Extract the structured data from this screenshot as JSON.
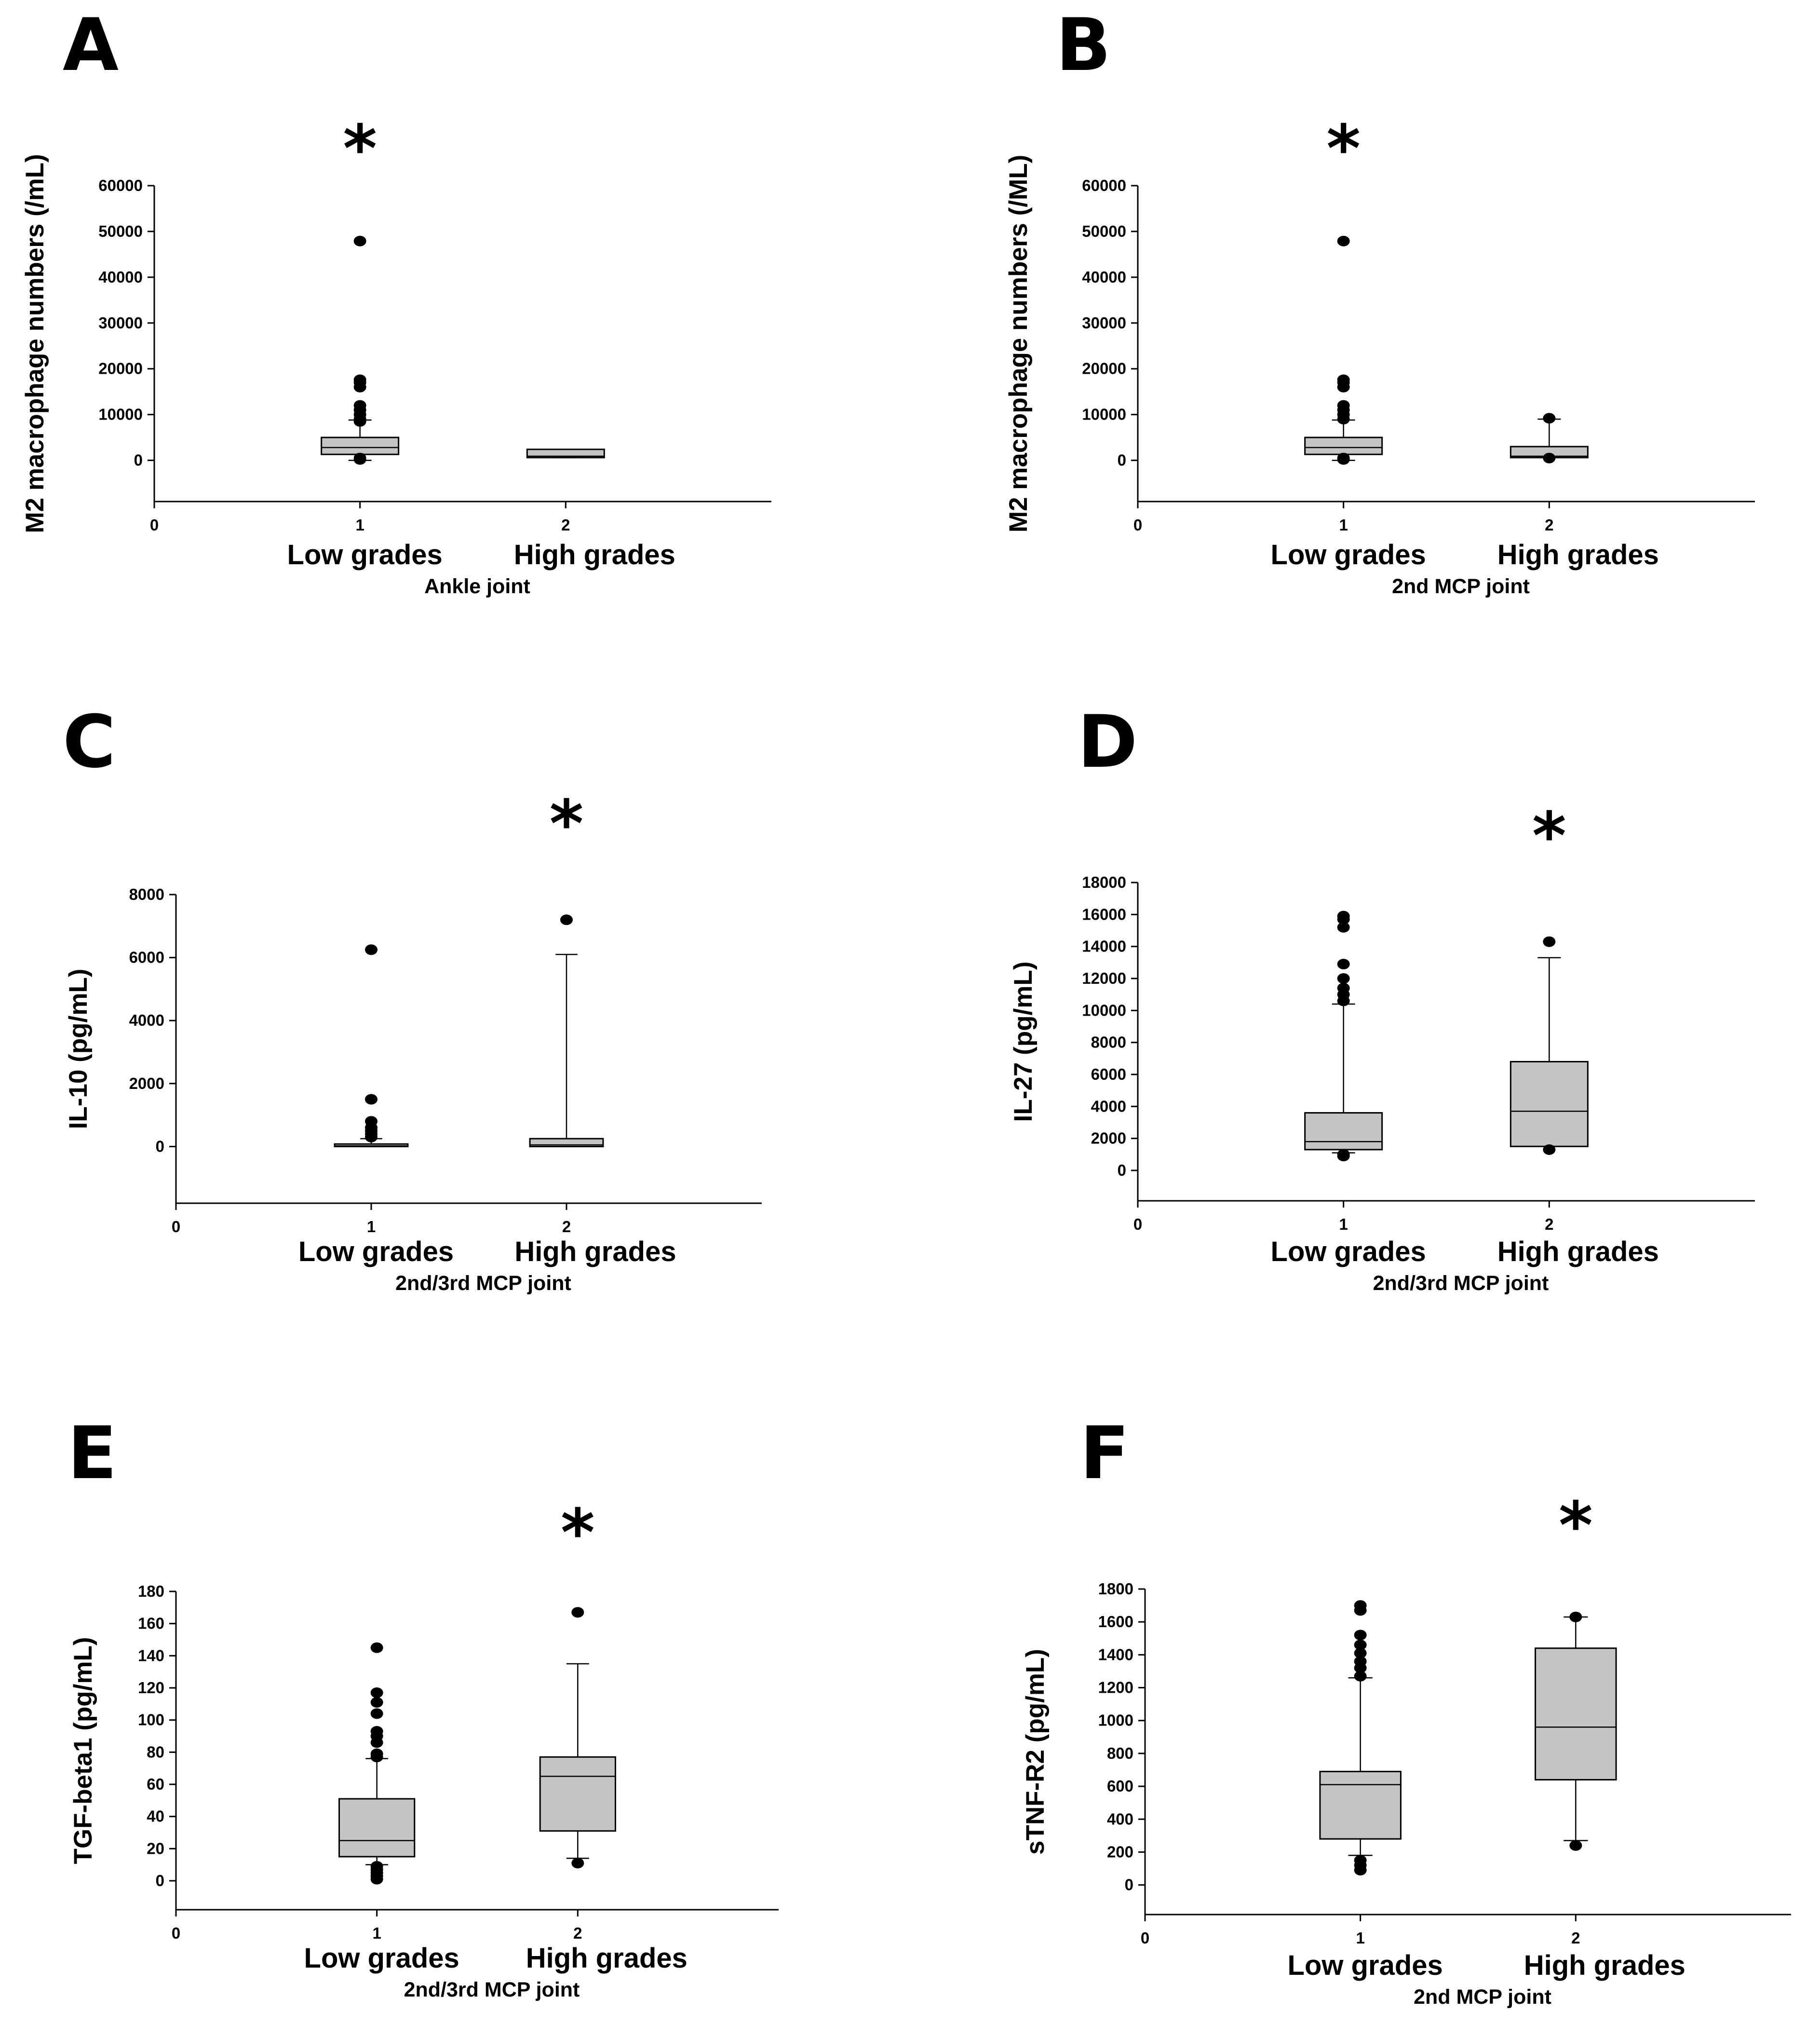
{
  "chart_data": [
    {
      "type": "box",
      "panel": "A",
      "significance": "*",
      "significance_over": 1,
      "ylabel": "M2 macrophage numbers (/mL)",
      "yticks": [
        0,
        10000,
        20000,
        30000,
        40000,
        50000,
        60000
      ],
      "ylim": [
        -9000,
        60000
      ],
      "xlim": [
        0,
        3
      ],
      "xticks": [
        0,
        1,
        2
      ],
      "categories": [
        "Low grades",
        "High grades"
      ],
      "xlabel": "Ankle joint",
      "groups": [
        {
          "x": 1,
          "q1": 1300,
          "median": 2800,
          "q3": 5000,
          "whisker_low": 0,
          "whisker_high": 8800,
          "outliers": [
            200,
            500,
            8500,
            9000,
            10000,
            11000,
            12000,
            16000,
            17000,
            17600,
            47900
          ]
        },
        {
          "x": 2,
          "q1": 600,
          "median": 900,
          "q3": 2400,
          "whisker_low": 600,
          "whisker_high": 2400,
          "outliers": []
        }
      ]
    },
    {
      "type": "box",
      "panel": "B",
      "significance": "*",
      "significance_over": 1,
      "ylabel": "M2 macrophage numbers (/ML)",
      "yticks": [
        0,
        10000,
        20000,
        30000,
        40000,
        50000,
        60000
      ],
      "ylim": [
        -9000,
        60000
      ],
      "xlim": [
        0,
        3
      ],
      "xticks": [
        0,
        1,
        2
      ],
      "categories": [
        "Low grades",
        "High grades"
      ],
      "xlabel": "2nd MCP joint",
      "groups": [
        {
          "x": 1,
          "q1": 1300,
          "median": 2800,
          "q3": 5000,
          "whisker_low": 0,
          "whisker_high": 8800,
          "outliers": [
            200,
            500,
            9000,
            10000,
            11000,
            12000,
            16000,
            17000,
            17600,
            47900
          ]
        },
        {
          "x": 2,
          "q1": 600,
          "median": 900,
          "q3": 3000,
          "whisker_low": 600,
          "whisker_high": 9000,
          "outliers": [
            500,
            9200
          ]
        }
      ]
    },
    {
      "type": "box",
      "panel": "C",
      "significance": "*",
      "significance_over": 2,
      "ylabel": "IL-10 (pg/mL)",
      "yticks": [
        0,
        2000,
        4000,
        6000,
        8000
      ],
      "ylim": [
        -1800,
        8000
      ],
      "xlim": [
        0,
        3
      ],
      "xticks": [
        0,
        1,
        2
      ],
      "categories": [
        "Low grades",
        "High grades"
      ],
      "xlabel": "2nd/3rd MCP joint",
      "groups": [
        {
          "x": 1,
          "q1": 0,
          "median": 20,
          "q3": 80,
          "whisker_low": 0,
          "whisker_high": 250,
          "outliers": [
            300,
            400,
            500,
            600,
            800,
            1500,
            6250
          ]
        },
        {
          "x": 2,
          "q1": 0,
          "median": 50,
          "q3": 250,
          "whisker_low": 0,
          "whisker_high": 6100,
          "outliers": [
            7200
          ]
        }
      ]
    },
    {
      "type": "box",
      "panel": "D",
      "significance": "*",
      "significance_over": 2,
      "ylabel": "IL-27 (pg/mL)",
      "yticks": [
        0,
        2000,
        4000,
        6000,
        8000,
        10000,
        12000,
        14000,
        16000,
        18000
      ],
      "ylim": [
        -1900,
        18000
      ],
      "xlim": [
        0,
        3
      ],
      "xticks": [
        0,
        1,
        2
      ],
      "categories": [
        "Low grades",
        "High grades"
      ],
      "xlabel": "2nd/3rd MCP joint",
      "groups": [
        {
          "x": 1,
          "q1": 1300,
          "median": 1800,
          "q3": 3600,
          "whisker_low": 1100,
          "whisker_high": 10400,
          "outliers": [
            900,
            1000,
            10600,
            11000,
            11400,
            12000,
            12900,
            15200,
            15700,
            15900
          ]
        },
        {
          "x": 2,
          "q1": 1500,
          "median": 3700,
          "q3": 6800,
          "whisker_low": 1500,
          "whisker_high": 13300,
          "outliers": [
            1300,
            14300
          ]
        }
      ]
    },
    {
      "type": "box",
      "panel": "E",
      "significance": "*",
      "significance_over": 2,
      "ylabel": "TGF-beta1 (pg/mL)",
      "yticks": [
        0,
        20,
        40,
        60,
        80,
        100,
        120,
        140,
        160,
        180
      ],
      "ylim": [
        -18,
        180
      ],
      "xlim": [
        0,
        3
      ],
      "xticks": [
        0,
        1,
        2
      ],
      "categories": [
        "Low grades",
        "High grades"
      ],
      "xlabel": "2nd/3rd MCP joint",
      "groups": [
        {
          "x": 1,
          "q1": 15,
          "median": 25,
          "q3": 51,
          "whisker_low": 10,
          "whisker_high": 76,
          "outliers": [
            1,
            3,
            5,
            7,
            9,
            77,
            79,
            86,
            90,
            93,
            104,
            111,
            117,
            145
          ]
        },
        {
          "x": 2,
          "q1": 31,
          "median": 65,
          "q3": 77,
          "whisker_low": 14,
          "whisker_high": 135,
          "outliers": [
            11,
            167
          ]
        }
      ]
    },
    {
      "type": "box",
      "panel": "F",
      "significance": "*",
      "significance_over": 2,
      "ylabel": "sTNF-R2 (pg/mL)",
      "yticks": [
        0,
        200,
        400,
        600,
        800,
        1000,
        1200,
        1400,
        1600,
        1800
      ],
      "ylim": [
        -180,
        1800
      ],
      "xlim": [
        0,
        3
      ],
      "xticks": [
        0,
        1,
        2
      ],
      "categories": [
        "Low grades",
        "High grades"
      ],
      "xlabel": "2nd MCP joint",
      "groups": [
        {
          "x": 1,
          "q1": 280,
          "median": 610,
          "q3": 690,
          "whisker_low": 180,
          "whisker_high": 1260,
          "outliers": [
            90,
            120,
            150,
            1270,
            1320,
            1360,
            1410,
            1460,
            1520,
            1670,
            1700
          ]
        },
        {
          "x": 2,
          "q1": 640,
          "median": 960,
          "q3": 1440,
          "whisker_low": 270,
          "whisker_high": 1630,
          "outliers": [
            240,
            1630
          ]
        }
      ]
    }
  ]
}
